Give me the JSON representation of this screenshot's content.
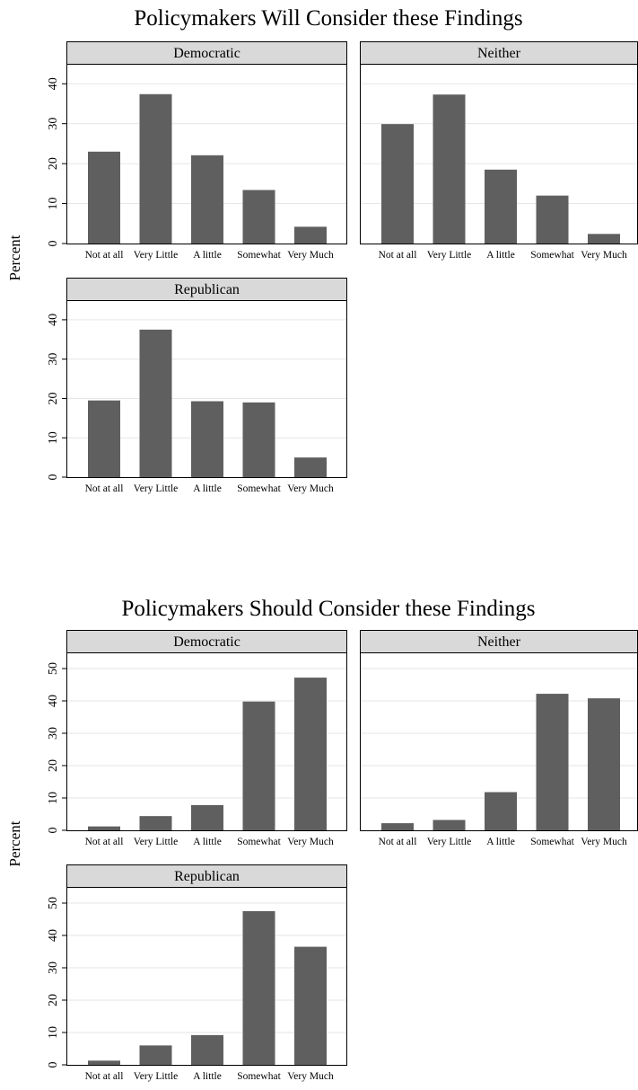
{
  "chart_data": [
    {
      "type": "bar",
      "title": "Policymakers Will Consider these Findings",
      "ylabel": "Percent",
      "categories": [
        "Not at all",
        "Very Little",
        "A little",
        "Somewhat",
        "Very Much"
      ],
      "ylim": [
        0,
        45
      ],
      "yticks": [
        0,
        10,
        20,
        30,
        40
      ],
      "grid": true,
      "bar_color": "#5f5f5f",
      "panels": [
        {
          "name": "Democratic",
          "values": [
            23.0,
            37.4,
            22.1,
            13.4,
            4.2
          ]
        },
        {
          "name": "Neither",
          "values": [
            29.9,
            37.3,
            18.5,
            12.0,
            2.4
          ]
        },
        {
          "name": "Republican",
          "values": [
            19.5,
            37.5,
            19.3,
            19.0,
            5.0
          ]
        }
      ]
    },
    {
      "type": "bar",
      "title": "Policymakers Should Consider these Findings",
      "ylabel": "Percent",
      "categories": [
        "Not at all",
        "Very Little",
        "A little",
        "Somewhat",
        "Very Much"
      ],
      "ylim": [
        0,
        55
      ],
      "yticks": [
        0,
        10,
        20,
        30,
        40,
        50
      ],
      "grid": true,
      "bar_color": "#5f5f5f",
      "panels": [
        {
          "name": "Democratic",
          "values": [
            1.2,
            4.4,
            7.8,
            39.8,
            47.2
          ]
        },
        {
          "name": "Neither",
          "values": [
            2.2,
            3.2,
            11.8,
            42.2,
            40.8
          ]
        },
        {
          "name": "Republican",
          "values": [
            1.3,
            6.0,
            9.2,
            47.5,
            36.5
          ]
        }
      ]
    }
  ]
}
